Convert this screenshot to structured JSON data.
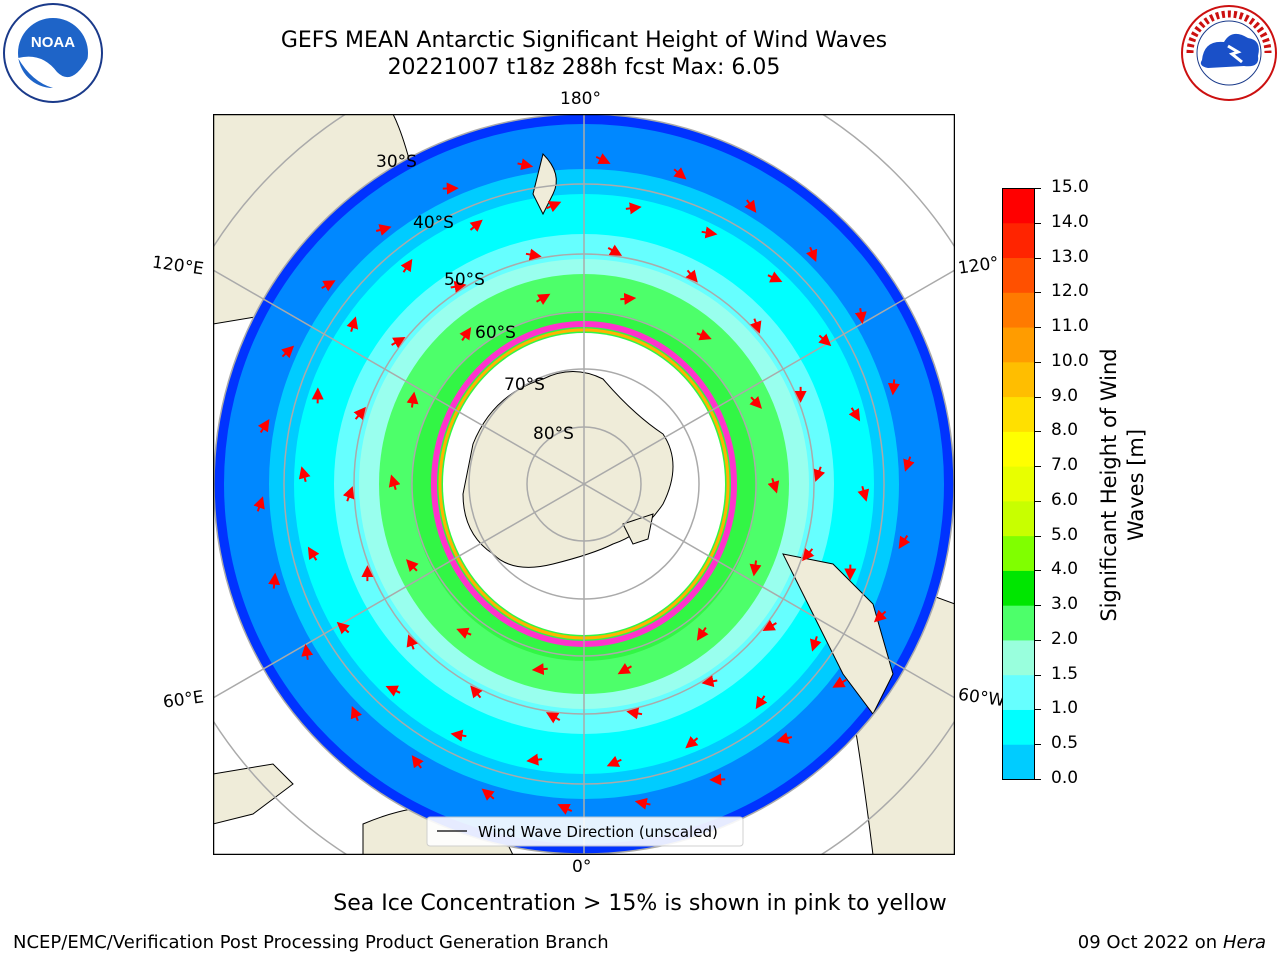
{
  "title": {
    "line1": "GEFS MEAN Antarctic Significant Height of Wind Waves",
    "line2": "20221007 t18z 288h fcst   Max: 6.05"
  },
  "logos": {
    "noaa_text": "NOAA",
    "nws_text": "NATIONAL WEATHER SERVICE"
  },
  "map": {
    "lon_labels": {
      "top": "180°",
      "bottom": "0°",
      "left_upper": "120°E",
      "left_lower": "60°E",
      "right_upper": "120°",
      "right_lower": "60°W"
    },
    "lat_labels": [
      "30°S",
      "40°S",
      "50°S",
      "60°S",
      "70°S",
      "80°S"
    ],
    "legend": "Wind Wave Direction (unscaled)"
  },
  "colorbar": {
    "label": "Significant Height of Wind Waves [m]",
    "label_line1": "Significant Height of Wind",
    "label_line2": "Waves [m]",
    "ticks": [
      "15.0",
      "14.0",
      "13.0",
      "12.0",
      "11.0",
      "10.0",
      "9.0",
      "8.0",
      "7.0",
      "6.0",
      "5.0",
      "4.0",
      "3.0",
      "2.0",
      "1.5",
      "1.0",
      "0.5",
      "0.0"
    ],
    "colors": [
      "#ff0000",
      "#ff2400",
      "#ff5000",
      "#ff7a00",
      "#ff9c00",
      "#ffbe00",
      "#ffe000",
      "#ffff00",
      "#e8ff00",
      "#c8ff00",
      "#80ff00",
      "#00e600",
      "#4dff6a",
      "#99ffdd",
      "#66ffff",
      "#00ffff",
      "#00ccff",
      "#0088ff",
      "#0000ff"
    ]
  },
  "footer": {
    "note": "Sea Ice Concentration > 15% is shown in pink to yellow",
    "left": "NCEP/EMC/Verification Post Processing Product Generation Branch",
    "right_prefix": "09 Oct 2022 on ",
    "right_host": "Hera"
  }
}
